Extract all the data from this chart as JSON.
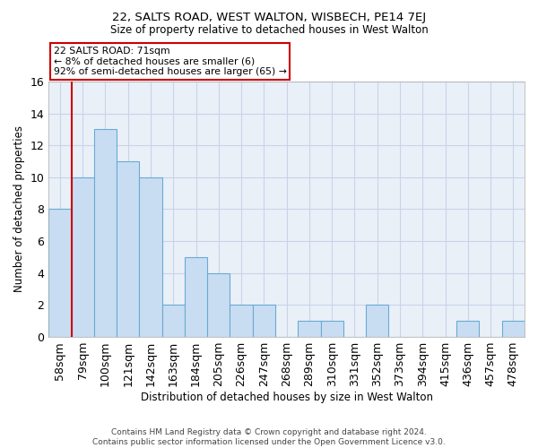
{
  "title": "22, SALTS ROAD, WEST WALTON, WISBECH, PE14 7EJ",
  "subtitle": "Size of property relative to detached houses in West Walton",
  "xlabel": "Distribution of detached houses by size in West Walton",
  "ylabel": "Number of detached properties",
  "categories": [
    "58sqm",
    "79sqm",
    "100sqm",
    "121sqm",
    "142sqm",
    "163sqm",
    "184sqm",
    "205sqm",
    "226sqm",
    "247sqm",
    "268sqm",
    "289sqm",
    "310sqm",
    "331sqm",
    "352sqm",
    "373sqm",
    "394sqm",
    "415sqm",
    "436sqm",
    "457sqm",
    "478sqm"
  ],
  "values": [
    8,
    10,
    13,
    11,
    10,
    2,
    5,
    4,
    2,
    2,
    0,
    1,
    1,
    0,
    2,
    0,
    0,
    0,
    1,
    0,
    1
  ],
  "bar_color": "#c9ddf2",
  "bar_edge_color": "#6aaad4",
  "highlight_line_color": "#cc0000",
  "annotation_line1": "22 SALTS ROAD: 71sqm",
  "annotation_line2": "← 8% of detached houses are smaller (6)",
  "annotation_line3": "92% of semi-detached houses are larger (65) →",
  "annotation_box_color": "#ffffff",
  "annotation_box_edge": "#cc0000",
  "grid_color": "#c8d4e8",
  "ylim": [
    0,
    16
  ],
  "yticks": [
    0,
    2,
    4,
    6,
    8,
    10,
    12,
    14,
    16
  ],
  "footer1": "Contains HM Land Registry data © Crown copyright and database right 2024.",
  "footer2": "Contains public sector information licensed under the Open Government Licence v3.0.",
  "bg_color": "#ffffff",
  "plot_bg_color": "#eaf0f8"
}
